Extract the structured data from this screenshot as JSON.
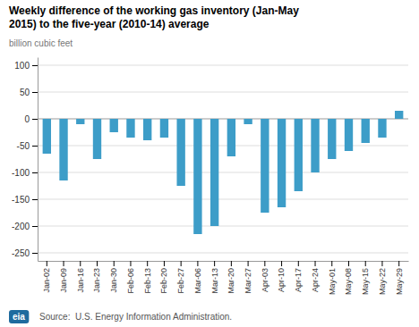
{
  "chart_data": {
    "type": "bar",
    "title": [
      "Weekly difference of the working gas inventory (Jan-May",
      "2015) to the five-year (2010-14) average"
    ],
    "subtitle": "billion cubic feet",
    "annotations": [
      "Source:  U.S. Energy Information Administration.",
      "eia"
    ],
    "categories": [
      "Jan-02",
      "Jan-09",
      "Jan-16",
      "Jan-23",
      "Jan-30",
      "Feb-06",
      "Feb-13",
      "Feb-20",
      "Feb-27",
      "Mar-06",
      "Mar-13",
      "Mar-20",
      "Mar-27",
      "Apr-03",
      "Apr-10",
      "Apr-17",
      "Apr-24",
      "May-01",
      "May-08",
      "May-15",
      "May-22",
      "May-29"
    ],
    "values": [
      -65,
      -115,
      -10,
      -75,
      -25,
      -35,
      -40,
      -35,
      -125,
      -215,
      -200,
      -70,
      -10,
      -175,
      -165,
      -135,
      -100,
      -75,
      -60,
      -45,
      -35,
      15
    ],
    "color": "#3d9dc8",
    "ylim": [
      -265,
      115
    ],
    "yticks": [
      100,
      50,
      0,
      -50,
      -100,
      -150,
      -200,
      -250
    ],
    "grid": true
  }
}
